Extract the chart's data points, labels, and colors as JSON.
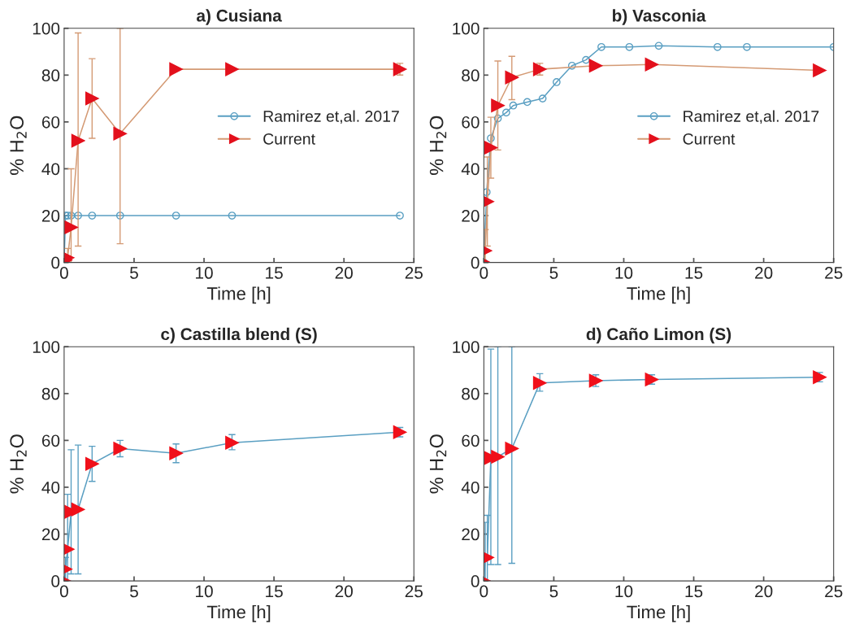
{
  "chart_data": [
    {
      "type": "line",
      "title": "a) Cusiana",
      "xlabel": "Time [h]",
      "ylabel": "% H$_{2}$O",
      "xlim": [
        0,
        25
      ],
      "ylim": [
        0,
        100
      ],
      "xticks": [
        0,
        5,
        10,
        15,
        20,
        25
      ],
      "yticks": [
        0,
        20,
        40,
        60,
        80,
        100
      ],
      "grid": false,
      "legend": "right",
      "series": [
        {
          "name": "Ramirez et,al. 2017",
          "color": "#5a9fc2",
          "marker": "circle",
          "x": [
            0,
            0.1,
            0.25,
            0.5,
            1,
            2,
            4,
            8,
            12,
            24
          ],
          "values": [
            0,
            20,
            20,
            20,
            20,
            20,
            20,
            20,
            20,
            20
          ]
        },
        {
          "name": "Current",
          "color": "#d49a74",
          "colors": [
            "#e3101c",
            "#e3101c",
            "#e3101c",
            "#e3101c",
            "#e3101c",
            "#e3101c",
            "#e3101c",
            "#e3101c",
            "#e3101c",
            "#e3101c"
          ],
          "marker": "triangle",
          "x": [
            0,
            0.1,
            0.25,
            0.5,
            1,
            2,
            4,
            8,
            12,
            24
          ],
          "values": [
            0,
            1,
            2,
            15,
            52,
            70,
            55,
            82.5,
            82.5,
            82.5
          ],
          "errors": [
            null,
            null,
            [
              0,
              6
            ],
            [
              0,
              40
            ],
            [
              7,
              98
            ],
            [
              53,
              87
            ],
            [
              8,
              100
            ],
            null,
            null,
            [
              80,
              85
            ]
          ]
        }
      ]
    },
    {
      "type": "line",
      "title": "b) Vasconia",
      "xlabel": "Time [h]",
      "ylabel": "% H$_{2}$O",
      "xlim": [
        0,
        25
      ],
      "ylim": [
        0,
        100
      ],
      "xticks": [
        0,
        5,
        10,
        15,
        20,
        25
      ],
      "yticks": [
        0,
        20,
        40,
        60,
        80,
        100
      ],
      "grid": false,
      "legend": "right",
      "series": [
        {
          "name": "Ramirez et,al. 2017",
          "color": "#5a9fc2",
          "marker": "circle",
          "x": [
            0,
            0.2,
            0.5,
            1,
            1.6,
            2.1,
            3.1,
            4.2,
            5.2,
            6.3,
            7.3,
            8.4,
            10.4,
            12.5,
            16.7,
            18.8,
            25
          ],
          "values": [
            0,
            30,
            53,
            61.5,
            64,
            67,
            68.5,
            70,
            77,
            84,
            86.5,
            92,
            92,
            92.5,
            92,
            92,
            92
          ]
        },
        {
          "name": "Current",
          "color": "#d49a74",
          "colors": [
            "#e3101c",
            "#e3101c",
            "#e3101c",
            "#e3101c",
            "#e3101c",
            "#e3101c",
            "#e3101c",
            "#e3101c",
            "#e3101c",
            "#e3101c"
          ],
          "marker": "triangle",
          "x": [
            0,
            0.1,
            0.25,
            0.5,
            1,
            2,
            4,
            8,
            12,
            24
          ],
          "values": [
            0,
            5,
            26,
            49,
            67,
            79,
            82.5,
            84,
            84.5,
            82
          ],
          "errors": [
            null,
            [
              0,
              14
            ],
            [
              7,
              45
            ],
            [
              36,
              62
            ],
            [
              48,
              86
            ],
            [
              69.5,
              88
            ],
            [
              80,
              85
            ],
            null,
            null,
            null
          ]
        }
      ]
    },
    {
      "type": "line",
      "title": "c) Castilla blend (S)",
      "xlabel": "Time [h]",
      "ylabel": "% H$_{2}$O",
      "xlim": [
        0,
        25
      ],
      "ylim": [
        0,
        100
      ],
      "xticks": [
        0,
        5,
        10,
        15,
        20,
        25
      ],
      "yticks": [
        0,
        20,
        40,
        60,
        80,
        100
      ],
      "grid": false,
      "series": [
        {
          "color": "#5a9fc2",
          "colors": [
            "#f0101a",
            "#f0101a",
            "#f0101a",
            "#f0101a",
            "#f0101a",
            "#f0101a",
            "#f0101a",
            "#f0101a",
            "#f0101a",
            "#f0101a"
          ],
          "marker": "triangle",
          "x": [
            0,
            0.1,
            0.25,
            0.5,
            1,
            2,
            4,
            8,
            12,
            24
          ],
          "values": [
            0,
            5,
            13.5,
            29.5,
            30.5,
            50,
            56.5,
            54.5,
            59,
            63.5
          ],
          "errors": [
            null,
            [
              0,
              10
            ],
            [
              0,
              37
            ],
            [
              3,
              56
            ],
            [
              3,
              58
            ],
            [
              42.5,
              57.5
            ],
            [
              53,
              60
            ],
            [
              50.5,
              58.5
            ],
            [
              56,
              62.5
            ],
            [
              61.5,
              65.5
            ]
          ]
        }
      ]
    },
    {
      "type": "line",
      "title": "d) Caño Limon (S)",
      "xlabel": "Time [h]",
      "ylabel": "% H$_{2}$O",
      "xlim": [
        0,
        25
      ],
      "ylim": [
        0,
        100
      ],
      "xticks": [
        0,
        5,
        10,
        15,
        20,
        25
      ],
      "yticks": [
        0,
        20,
        40,
        60,
        80,
        100
      ],
      "grid": false,
      "series": [
        {
          "color": "#5a9fc2",
          "colors": [
            "#f0101a",
            "#f0101a",
            "#f0101a",
            "#f0101a",
            "#f0101a",
            "#f0101a",
            "#f0101a",
            "#f0101a",
            "#f0101a",
            "#f0101a"
          ],
          "marker": "triangle",
          "x": [
            0,
            0.1,
            0.25,
            0.5,
            1,
            2,
            4,
            8,
            12,
            24
          ],
          "values": [
            0,
            9.5,
            10,
            52.5,
            53,
            56.5,
            84.5,
            85.5,
            86,
            87
          ],
          "errors": [
            null,
            [
              0,
              25
            ],
            [
              0,
              28
            ],
            [
              7,
              99
            ],
            [
              7,
              100
            ],
            [
              7.5,
              100
            ],
            [
              81,
              88.5
            ],
            [
              83,
              88
            ],
            [
              84,
              88
            ],
            [
              85,
              89
            ]
          ]
        }
      ]
    }
  ]
}
